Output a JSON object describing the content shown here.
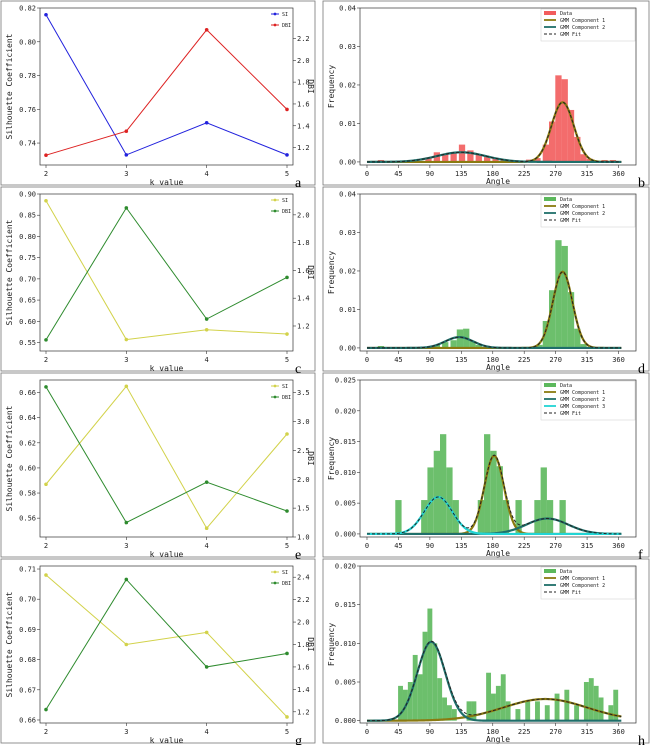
{
  "colors": {
    "si": "#2222dd",
    "dbi": "#dd2222",
    "si_yellow": "#d2d24a",
    "dbi_green": "#2e8b2e",
    "data_red": "#f25c5c",
    "data_green": "#5cb85c",
    "comp1": "#8a7a10",
    "comp2": "#1f6f6a",
    "comp3": "#22d4d4",
    "fit": "#222222"
  },
  "chart_data": [
    {
      "type": "line",
      "panel": "a",
      "xlabel": "k value",
      "ylabel": "Silhouette Coefficient",
      "y2label": "DBI",
      "categories": [
        2,
        3,
        4,
        5
      ],
      "xticks": [
        "2",
        "3",
        "4",
        "5"
      ],
      "ylim": [
        0.727,
        0.82
      ],
      "yticks": [
        "0.74",
        "0.76",
        "0.78",
        "0.80",
        "0.82"
      ],
      "ytickvals": [
        0.74,
        0.76,
        0.78,
        0.8,
        0.82
      ],
      "y2lim": [
        1.04,
        2.48
      ],
      "y2ticks": [
        "1.2",
        "1.4",
        "1.6",
        "1.8",
        "2.0",
        "2.2"
      ],
      "y2tickvals": [
        1.2,
        1.4,
        1.6,
        1.8,
        2.0,
        2.2
      ],
      "series": [
        {
          "name": "SI",
          "axis": "left",
          "color": "si",
          "values": [
            0.816,
            0.733,
            0.752,
            0.733
          ]
        },
        {
          "name": "DBI",
          "axis": "right",
          "color": "dbi",
          "values": [
            1.13,
            1.35,
            2.28,
            1.55
          ]
        }
      ]
    },
    {
      "type": "hist",
      "panel": "b",
      "xlabel": "Angle",
      "ylabel": "Frequency",
      "xlim": [
        -10,
        385
      ],
      "xticks": [
        "0",
        "45",
        "90",
        "135",
        "180",
        "225",
        "270",
        "315",
        "360"
      ],
      "xtickvals": [
        0,
        45,
        90,
        135,
        180,
        225,
        270,
        315,
        360
      ],
      "ylim": [
        -0.0008,
        0.04
      ],
      "yticks": [
        "0.00",
        "0.01",
        "0.02",
        "0.03",
        "0.04"
      ],
      "ytickvals": [
        0,
        0.01,
        0.02,
        0.03,
        0.04
      ],
      "bar_color": "data_red",
      "bar_width": 9,
      "bars": [
        [
          20,
          0.0005
        ],
        [
          88,
          0.0012
        ],
        [
          100,
          0.0025
        ],
        [
          112,
          0.002
        ],
        [
          124,
          0.0022
        ],
        [
          136,
          0.0045
        ],
        [
          148,
          0.003
        ],
        [
          160,
          0.002
        ],
        [
          172,
          0.0014
        ],
        [
          184,
          0.001
        ],
        [
          196,
          0.0005
        ],
        [
          232,
          0.0006
        ],
        [
          244,
          0.001
        ],
        [
          256,
          0.0045
        ],
        [
          265,
          0.0105
        ],
        [
          274,
          0.0225
        ],
        [
          283,
          0.0215
        ],
        [
          292,
          0.0135
        ],
        [
          301,
          0.0065
        ],
        [
          310,
          0.002
        ],
        [
          319,
          0.0008
        ],
        [
          340,
          0.0005
        ],
        [
          352,
          0.0005
        ]
      ],
      "components": [
        {
          "name": "GMM Component 1",
          "color": "comp1",
          "mu": 280,
          "sigma": 16,
          "amp": 0.0155
        },
        {
          "name": "GMM Component 2",
          "color": "comp2",
          "mu": 135,
          "sigma": 35,
          "amp": 0.0025
        }
      ],
      "legend": [
        "Data",
        "GMM Component 1",
        "GMM Component 2",
        "GMM Fit"
      ]
    },
    {
      "type": "line",
      "panel": "c",
      "xlabel": "k value",
      "ylabel": "Silhouette Coefficient",
      "y2label": "DBI",
      "categories": [
        2,
        3,
        4,
        5
      ],
      "xticks": [
        "2",
        "3",
        "4",
        "5"
      ],
      "ylim": [
        0.53,
        0.9
      ],
      "yticks": [
        "0.55",
        "0.60",
        "0.65",
        "0.70",
        "0.75",
        "0.80",
        "0.85",
        "0.90"
      ],
      "ytickvals": [
        0.55,
        0.6,
        0.65,
        0.7,
        0.75,
        0.8,
        0.85,
        0.9
      ],
      "y2lim": [
        1.02,
        2.15
      ],
      "y2ticks": [
        "1.2",
        "1.4",
        "1.6",
        "1.8",
        "2.0"
      ],
      "y2tickvals": [
        1.2,
        1.4,
        1.6,
        1.8,
        2.0
      ],
      "series": [
        {
          "name": "SI",
          "axis": "left",
          "color": "si_yellow",
          "values": [
            0.884,
            0.557,
            0.58,
            0.57
          ]
        },
        {
          "name": "DBI",
          "axis": "right",
          "color": "dbi_green",
          "values": [
            1.1,
            2.05,
            1.25,
            1.55
          ]
        }
      ]
    },
    {
      "type": "hist",
      "panel": "d",
      "xlabel": "Angle",
      "ylabel": "Frequency",
      "xlim": [
        -10,
        385
      ],
      "xticks": [
        "0",
        "45",
        "90",
        "135",
        "180",
        "225",
        "270",
        "315",
        "360"
      ],
      "xtickvals": [
        0,
        45,
        90,
        135,
        180,
        225,
        270,
        315,
        360
      ],
      "ylim": [
        -0.0008,
        0.04
      ],
      "yticks": [
        "0.00",
        "0.01",
        "0.02",
        "0.03",
        "0.04"
      ],
      "ytickvals": [
        0,
        0.01,
        0.02,
        0.03,
        0.04
      ],
      "bar_color": "data_green",
      "bar_width": 9,
      "bars": [
        [
          20,
          0.0005
        ],
        [
          100,
          0.0008
        ],
        [
          112,
          0.0015
        ],
        [
          124,
          0.002
        ],
        [
          133,
          0.0048
        ],
        [
          142,
          0.005
        ],
        [
          151,
          0.0018
        ],
        [
          160,
          0.0008
        ],
        [
          247,
          0.0008
        ],
        [
          256,
          0.007
        ],
        [
          265,
          0.015
        ],
        [
          274,
          0.028
        ],
        [
          283,
          0.0265
        ],
        [
          292,
          0.0145
        ],
        [
          301,
          0.005
        ],
        [
          310,
          0.001
        ]
      ],
      "components": [
        {
          "name": "GMM Component 1",
          "color": "comp1",
          "mu": 280,
          "sigma": 14,
          "amp": 0.0198
        },
        {
          "name": "GMM Component 2",
          "color": "comp2",
          "mu": 132,
          "sigma": 20,
          "amp": 0.0028
        }
      ],
      "legend": [
        "Data",
        "GMM Component 1",
        "GMM Component 2",
        "GMM Fit"
      ]
    },
    {
      "type": "line",
      "panel": "e",
      "xlabel": "k value",
      "ylabel": "Silhouette Coefficient",
      "y2label": "DBI",
      "categories": [
        2,
        3,
        4,
        5
      ],
      "xticks": [
        "2",
        "3",
        "4",
        "5"
      ],
      "ylim": [
        0.545,
        0.67
      ],
      "yticks": [
        "0.56",
        "0.58",
        "0.60",
        "0.62",
        "0.64",
        "0.66"
      ],
      "ytickvals": [
        0.56,
        0.58,
        0.6,
        0.62,
        0.64,
        0.66
      ],
      "y2lim": [
        1.0,
        3.72
      ],
      "y2ticks": [
        "1.0",
        "1.5",
        "2.0",
        "2.5",
        "3.0",
        "3.5"
      ],
      "y2tickvals": [
        1.0,
        1.5,
        2.0,
        2.5,
        3.0,
        3.5
      ],
      "series": [
        {
          "name": "SI",
          "axis": "left",
          "color": "si_yellow",
          "values": [
            0.587,
            0.665,
            0.552,
            0.627
          ]
        },
        {
          "name": "DBI",
          "axis": "right",
          "color": "dbi_green",
          "values": [
            3.6,
            1.25,
            1.95,
            1.45
          ]
        }
      ]
    },
    {
      "type": "hist",
      "panel": "f",
      "xlabel": "Angle",
      "ylabel": "Frequency",
      "xlim": [
        -10,
        385
      ],
      "xticks": [
        "0",
        "45",
        "90",
        "135",
        "180",
        "225",
        "270",
        "315",
        "360"
      ],
      "xtickvals": [
        0,
        45,
        90,
        135,
        180,
        225,
        270,
        315,
        360
      ],
      "ylim": [
        -0.0005,
        0.025
      ],
      "yticks": [
        "0.000",
        "0.005",
        "0.010",
        "0.015",
        "0.020",
        "0.025"
      ],
      "ytickvals": [
        0,
        0.005,
        0.01,
        0.015,
        0.02,
        0.025
      ],
      "bar_color": "data_green",
      "bar_width": 9,
      "bars": [
        [
          45,
          0.0055
        ],
        [
          82,
          0.0055
        ],
        [
          91,
          0.0108
        ],
        [
          100,
          0.0135
        ],
        [
          109,
          0.0162
        ],
        [
          118,
          0.0108
        ],
        [
          127,
          0.0055
        ],
        [
          163,
          0.0055
        ],
        [
          172,
          0.0162
        ],
        [
          181,
          0.0135
        ],
        [
          190,
          0.011
        ],
        [
          199,
          0.0055
        ],
        [
          217,
          0.0055
        ],
        [
          244,
          0.0055
        ],
        [
          253,
          0.0108
        ],
        [
          262,
          0.0055
        ],
        [
          280,
          0.0055
        ]
      ],
      "components": [
        {
          "name": "GMM Component 1",
          "color": "comp1",
          "mu": 182,
          "sigma": 14,
          "amp": 0.0127
        },
        {
          "name": "GMM Component 2",
          "color": "comp2",
          "mu": 258,
          "sigma": 30,
          "amp": 0.0025
        },
        {
          "name": "GMM Component 3",
          "color": "comp3",
          "mu": 102,
          "sigma": 20,
          "amp": 0.006
        }
      ],
      "legend": [
        "Data",
        "GMM Component 1",
        "GMM Component 2",
        "GMM Component 3",
        "GMM Fit"
      ]
    },
    {
      "type": "line",
      "panel": "g",
      "xlabel": "k value",
      "ylabel": "Silhouette Coefficient",
      "y2label": "DBI",
      "categories": [
        2,
        3,
        4,
        5
      ],
      "xticks": [
        "2",
        "3",
        "4",
        "5"
      ],
      "ylim": [
        0.659,
        0.711
      ],
      "yticks": [
        "0.66",
        "0.67",
        "0.68",
        "0.69",
        "0.70",
        "0.71"
      ],
      "ytickvals": [
        0.66,
        0.67,
        0.68,
        0.69,
        0.7,
        0.71
      ],
      "y2lim": [
        1.1,
        2.5
      ],
      "y2ticks": [
        "1.2",
        "1.4",
        "1.6",
        "1.8",
        "2.0",
        "2.2",
        "2.4"
      ],
      "y2tickvals": [
        1.2,
        1.4,
        1.6,
        1.8,
        2.0,
        2.2,
        2.4
      ],
      "series": [
        {
          "name": "SI",
          "axis": "left",
          "color": "si_yellow",
          "values": [
            0.708,
            0.685,
            0.689,
            0.661
          ]
        },
        {
          "name": "DBI",
          "axis": "right",
          "color": "dbi_green",
          "values": [
            1.22,
            2.38,
            1.6,
            1.72
          ]
        }
      ]
    },
    {
      "type": "hist",
      "panel": "h",
      "xlabel": "Angle",
      "ylabel": "Frequency",
      "xlim": [
        -10,
        385
      ],
      "xticks": [
        "0",
        "45",
        "90",
        "135",
        "180",
        "225",
        "270",
        "315",
        "360"
      ],
      "xtickvals": [
        0,
        45,
        90,
        135,
        180,
        225,
        270,
        315,
        360
      ],
      "ylim": [
        -0.0003,
        0.02
      ],
      "yticks": [
        "0.000",
        "0.005",
        "0.010",
        "0.015",
        "0.020"
      ],
      "ytickvals": [
        0,
        0.005,
        0.01,
        0.015,
        0.02
      ],
      "bar_color": "data_green",
      "bar_width": 7,
      "bars": [
        [
          48,
          0.0045
        ],
        [
          55,
          0.004
        ],
        [
          62,
          0.005
        ],
        [
          69,
          0.0085
        ],
        [
          76,
          0.006
        ],
        [
          83,
          0.0115
        ],
        [
          90,
          0.0145
        ],
        [
          97,
          0.01
        ],
        [
          104,
          0.0055
        ],
        [
          111,
          0.003
        ],
        [
          118,
          0.002
        ],
        [
          125,
          0.0015
        ],
        [
          146,
          0.0025
        ],
        [
          153,
          0.0025
        ],
        [
          174,
          0.0062
        ],
        [
          181,
          0.0035
        ],
        [
          188,
          0.0045
        ],
        [
          195,
          0.006
        ],
        [
          202,
          0.0025
        ],
        [
          216,
          0.0015
        ],
        [
          230,
          0.0025
        ],
        [
          244,
          0.0025
        ],
        [
          258,
          0.002
        ],
        [
          272,
          0.0035
        ],
        [
          286,
          0.004
        ],
        [
          300,
          0.002
        ],
        [
          314,
          0.005
        ],
        [
          321,
          0.0055
        ],
        [
          328,
          0.0045
        ],
        [
          335,
          0.003
        ],
        [
          349,
          0.002
        ],
        [
          356,
          0.004
        ]
      ],
      "components": [
        {
          "name": "GMM Component 1",
          "color": "comp1",
          "mu": 255,
          "sigma": 60,
          "amp": 0.0028
        },
        {
          "name": "GMM Component 2",
          "color": "comp2",
          "mu": 92,
          "sigma": 20,
          "amp": 0.0102
        }
      ],
      "legend": [
        "Data",
        "GMM Component 1",
        "GMM Component 2",
        "GMM Fit"
      ]
    }
  ],
  "legend_labels": {
    "si": "SI",
    "dbi": "DBI"
  },
  "panel_letters": [
    "a",
    "b",
    "c",
    "d",
    "e",
    "f",
    "g",
    "h"
  ]
}
